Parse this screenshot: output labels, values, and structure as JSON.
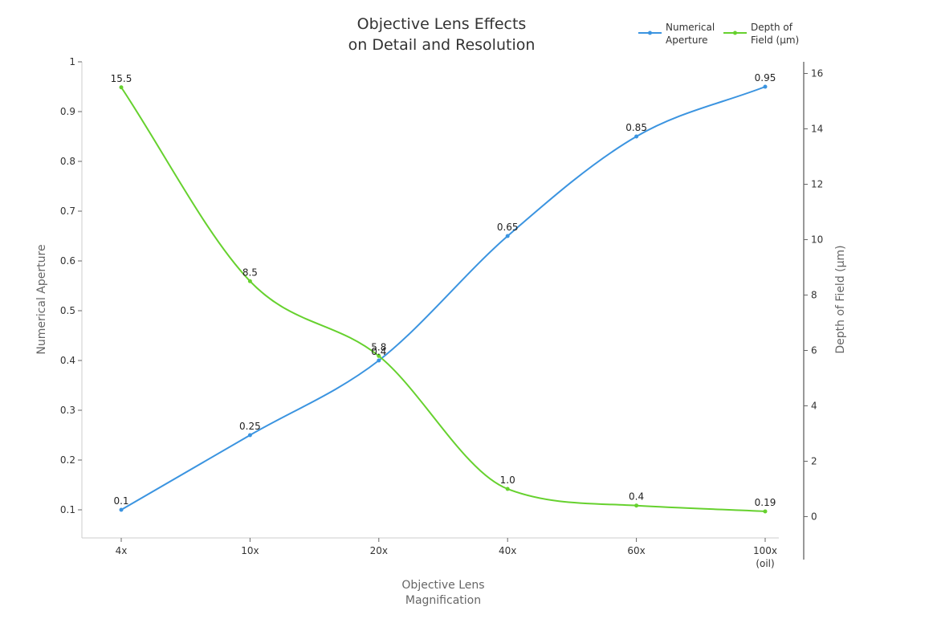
{
  "colors": {
    "aperture": "#3b94e0",
    "depth": "#66d12e",
    "axis": "#cccccc",
    "axis_right": "#333333"
  },
  "chart_data": {
    "type": "line",
    "title": [
      "Objective Lens Effects",
      "on Detail and Resolution"
    ],
    "xlabel": [
      "Objective Lens",
      "Magnification"
    ],
    "ylabel": "Numerical Aperture",
    "y2label": "Depth of Field (µm)",
    "categories": [
      [
        "4x"
      ],
      [
        "10x"
      ],
      [
        "20x"
      ],
      [
        "40x"
      ],
      [
        "60x"
      ],
      [
        "100x",
        "(oil)"
      ]
    ],
    "ylim": [
      0.05,
      1
    ],
    "yticks": [
      "1",
      "0.9",
      "0.8",
      "0.7",
      "0.6",
      "0.5",
      "0.4",
      "0.3",
      "0.2",
      "0.1"
    ],
    "y2lim": [
      -0.7,
      16.5
    ],
    "y2ticks": [
      "16",
      "14",
      "12",
      "10",
      "8",
      "6",
      "4",
      "2",
      "0"
    ],
    "legend_position": "top-right",
    "grid": false,
    "series": [
      {
        "name": [
          "Numerical",
          "Aperture"
        ],
        "axis": "left",
        "values": [
          0.1,
          0.25,
          0.4,
          0.65,
          0.85,
          0.95
        ],
        "labels": [
          "0.1",
          "0.25",
          "0.4",
          "0.65",
          "0.85",
          "0.95"
        ]
      },
      {
        "name": [
          "Depth of",
          "Field (µm)"
        ],
        "axis": "right",
        "values": [
          15.5,
          8.5,
          5.8,
          1.0,
          0.4,
          0.19
        ],
        "labels": [
          "15.5",
          "8.5",
          "5.8",
          "1.0",
          "0.4",
          "0.19"
        ]
      }
    ]
  }
}
